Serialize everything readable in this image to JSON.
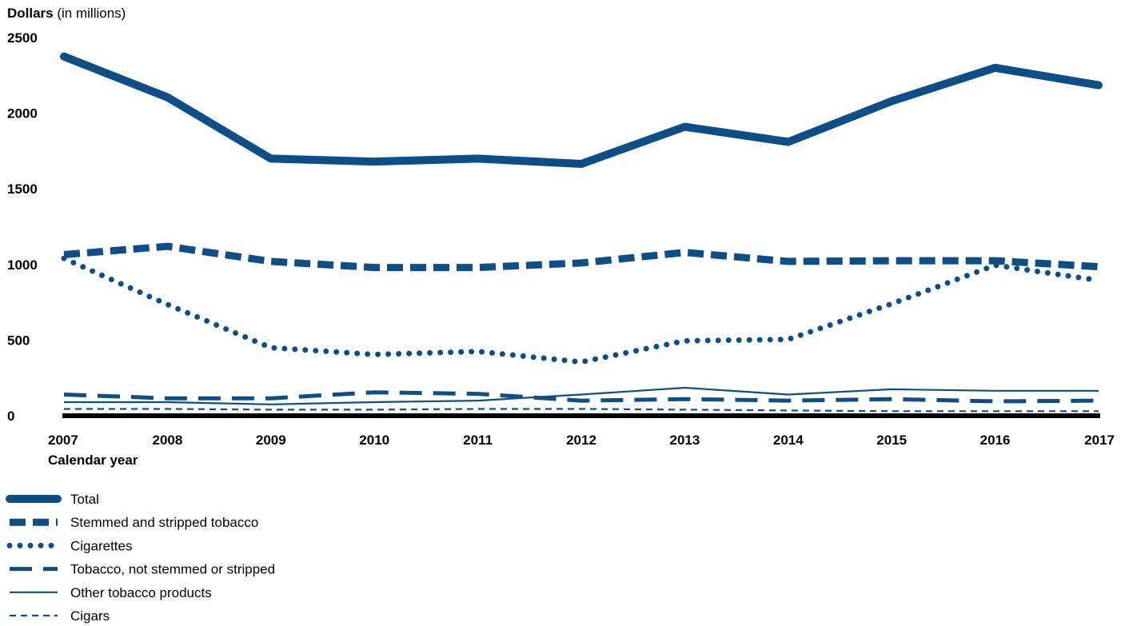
{
  "chart_data": {
    "type": "line",
    "ylabel_bold": "Dollars",
    "ylabel_rest": " (in millions)",
    "xlabel": "Calendar year",
    "x": [
      "2007",
      "2008",
      "2009",
      "2010",
      "2011",
      "2012",
      "2013",
      "2014",
      "2015",
      "2016",
      "2017"
    ],
    "yticks": [
      0,
      500,
      1000,
      1500,
      2000,
      2500
    ],
    "ylim": [
      0,
      2500
    ],
    "grid": false,
    "legend_placement": "bottom-left",
    "color": "#0b4f8a",
    "series": [
      {
        "name": "Total",
        "style": "thick-solid",
        "values": [
          2375,
          2105,
          1700,
          1680,
          1700,
          1665,
          1910,
          1810,
          2080,
          2300,
          2185
        ]
      },
      {
        "name": "Stemmed and stripped tobacco",
        "style": "thick-dash",
        "values": [
          1065,
          1120,
          1020,
          980,
          980,
          1010,
          1080,
          1020,
          1025,
          1025,
          985
        ]
      },
      {
        "name": "Cigarettes",
        "style": "dotted",
        "values": [
          1040,
          735,
          450,
          405,
          425,
          355,
          495,
          505,
          740,
          995,
          895
        ]
      },
      {
        "name": "Tobacco, not stemmed or stripped",
        "style": "medium-dash",
        "values": [
          140,
          115,
          115,
          155,
          145,
          100,
          110,
          100,
          110,
          95,
          100
        ]
      },
      {
        "name": "Other tobacco products",
        "style": "thin-solid",
        "values": [
          90,
          90,
          75,
          90,
          100,
          140,
          185,
          140,
          175,
          165,
          165
        ]
      },
      {
        "name": "Cigars",
        "style": "thin-dash",
        "values": [
          45,
          45,
          40,
          40,
          45,
          45,
          40,
          35,
          30,
          30,
          30
        ]
      }
    ]
  }
}
